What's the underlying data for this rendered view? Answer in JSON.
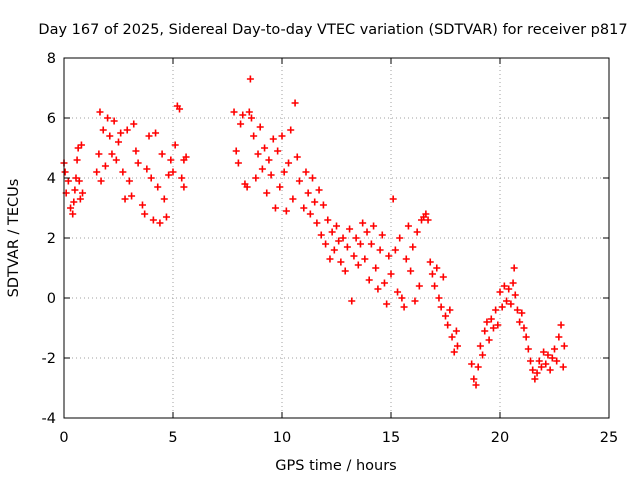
{
  "chart_data": {
    "type": "scatter",
    "title": "Day 167 of 2025, Sidereal Day-to-day VTEC variation (SDTVAR) for receiver p817",
    "xlabel": "GPS time / hours",
    "ylabel": "SDTVAR / TECUs",
    "xlim": [
      0,
      25
    ],
    "ylim": [
      -4,
      8
    ],
    "xticks": [
      0,
      5,
      10,
      15,
      20,
      25
    ],
    "yticks": [
      -4,
      -2,
      0,
      2,
      4,
      6,
      8
    ],
    "grid": true,
    "marker": "+",
    "series": [
      {
        "name": "SDTVAR",
        "color": "#ff0000",
        "points": [
          [
            0.0,
            4.5
          ],
          [
            0.05,
            4.2
          ],
          [
            0.1,
            3.5
          ],
          [
            0.2,
            3.9
          ],
          [
            0.3,
            3.0
          ],
          [
            0.4,
            2.8
          ],
          [
            0.45,
            3.2
          ],
          [
            0.5,
            3.6
          ],
          [
            0.55,
            4.0
          ],
          [
            0.6,
            4.6
          ],
          [
            0.65,
            5.0
          ],
          [
            0.7,
            3.9
          ],
          [
            0.75,
            3.3
          ],
          [
            0.8,
            5.1
          ],
          [
            0.85,
            3.5
          ],
          [
            1.5,
            4.2
          ],
          [
            1.6,
            4.8
          ],
          [
            1.65,
            6.2
          ],
          [
            1.7,
            3.9
          ],
          [
            1.8,
            5.6
          ],
          [
            1.9,
            4.4
          ],
          [
            2.0,
            6.0
          ],
          [
            2.1,
            5.4
          ],
          [
            2.2,
            4.8
          ],
          [
            2.3,
            5.9
          ],
          [
            2.4,
            4.6
          ],
          [
            2.5,
            5.2
          ],
          [
            2.6,
            5.5
          ],
          [
            2.7,
            4.2
          ],
          [
            2.8,
            3.3
          ],
          [
            2.9,
            5.6
          ],
          [
            3.0,
            3.9
          ],
          [
            3.1,
            3.4
          ],
          [
            3.2,
            5.8
          ],
          [
            3.3,
            4.9
          ],
          [
            3.4,
            4.5
          ],
          [
            3.6,
            3.1
          ],
          [
            3.7,
            2.8
          ],
          [
            3.8,
            4.3
          ],
          [
            3.9,
            5.4
          ],
          [
            4.0,
            4.0
          ],
          [
            4.1,
            2.6
          ],
          [
            4.2,
            5.5
          ],
          [
            4.3,
            3.7
          ],
          [
            4.4,
            2.5
          ],
          [
            4.5,
            4.8
          ],
          [
            4.6,
            3.3
          ],
          [
            4.7,
            2.7
          ],
          [
            4.8,
            4.1
          ],
          [
            4.9,
            4.6
          ],
          [
            5.0,
            4.2
          ],
          [
            5.1,
            5.1
          ],
          [
            5.2,
            6.4
          ],
          [
            5.3,
            6.3
          ],
          [
            5.4,
            4.0
          ],
          [
            5.5,
            4.6
          ],
          [
            5.6,
            4.7
          ],
          [
            5.5,
            3.7
          ],
          [
            7.8,
            6.2
          ],
          [
            7.9,
            4.9
          ],
          [
            8.0,
            4.5
          ],
          [
            8.1,
            5.8
          ],
          [
            8.2,
            6.1
          ],
          [
            8.3,
            3.8
          ],
          [
            8.4,
            3.7
          ],
          [
            8.5,
            6.2
          ],
          [
            8.55,
            7.3
          ],
          [
            8.6,
            6.0
          ],
          [
            8.7,
            5.4
          ],
          [
            8.8,
            4.0
          ],
          [
            8.9,
            4.8
          ],
          [
            9.0,
            5.7
          ],
          [
            9.1,
            4.3
          ],
          [
            9.2,
            5.0
          ],
          [
            9.3,
            3.5
          ],
          [
            9.4,
            4.6
          ],
          [
            9.5,
            4.1
          ],
          [
            9.6,
            5.3
          ],
          [
            9.7,
            3.0
          ],
          [
            9.8,
            4.9
          ],
          [
            9.9,
            3.7
          ],
          [
            10.0,
            5.4
          ],
          [
            10.1,
            4.2
          ],
          [
            10.2,
            2.9
          ],
          [
            10.3,
            4.5
          ],
          [
            10.4,
            5.6
          ],
          [
            10.5,
            3.3
          ],
          [
            10.6,
            6.5
          ],
          [
            10.7,
            4.7
          ],
          [
            10.8,
            3.9
          ],
          [
            11.0,
            3.0
          ],
          [
            11.1,
            4.2
          ],
          [
            11.2,
            3.5
          ],
          [
            11.3,
            2.8
          ],
          [
            11.4,
            4.0
          ],
          [
            11.5,
            3.2
          ],
          [
            11.6,
            2.5
          ],
          [
            11.7,
            3.6
          ],
          [
            11.8,
            2.1
          ],
          [
            11.9,
            3.1
          ],
          [
            12.0,
            1.8
          ],
          [
            12.1,
            2.6
          ],
          [
            12.2,
            1.3
          ],
          [
            12.3,
            2.2
          ],
          [
            12.4,
            1.6
          ],
          [
            12.5,
            2.4
          ],
          [
            12.6,
            1.9
          ],
          [
            12.7,
            1.2
          ],
          [
            12.8,
            2.0
          ],
          [
            12.9,
            0.9
          ],
          [
            13.0,
            1.7
          ],
          [
            13.1,
            2.3
          ],
          [
            13.2,
            -0.1
          ],
          [
            13.3,
            1.4
          ],
          [
            13.4,
            2.0
          ],
          [
            13.5,
            1.1
          ],
          [
            13.6,
            1.8
          ],
          [
            13.7,
            2.5
          ],
          [
            13.8,
            1.3
          ],
          [
            13.9,
            2.2
          ],
          [
            14.0,
            0.6
          ],
          [
            14.1,
            1.8
          ],
          [
            14.2,
            2.4
          ],
          [
            14.3,
            1.0
          ],
          [
            14.4,
            0.3
          ],
          [
            14.5,
            1.6
          ],
          [
            14.6,
            2.1
          ],
          [
            14.7,
            0.5
          ],
          [
            14.8,
            -0.2
          ],
          [
            14.9,
            1.4
          ],
          [
            15.0,
            0.8
          ],
          [
            15.1,
            3.3
          ],
          [
            15.2,
            1.6
          ],
          [
            15.3,
            0.2
          ],
          [
            15.4,
            2.0
          ],
          [
            15.5,
            0.0
          ],
          [
            15.6,
            -0.3
          ],
          [
            15.7,
            1.3
          ],
          [
            15.8,
            2.4
          ],
          [
            15.9,
            0.9
          ],
          [
            16.0,
            1.7
          ],
          [
            16.1,
            -0.1
          ],
          [
            16.2,
            2.2
          ],
          [
            16.3,
            0.4
          ],
          [
            16.4,
            2.6
          ],
          [
            16.5,
            2.7
          ],
          [
            16.6,
            2.8
          ],
          [
            16.7,
            2.6
          ],
          [
            16.8,
            1.2
          ],
          [
            16.9,
            0.8
          ],
          [
            17.0,
            0.4
          ],
          [
            17.1,
            1.0
          ],
          [
            17.2,
            0.0
          ],
          [
            17.3,
            -0.3
          ],
          [
            17.4,
            0.7
          ],
          [
            17.5,
            -0.6
          ],
          [
            17.6,
            -0.9
          ],
          [
            17.7,
            -0.4
          ],
          [
            17.8,
            -1.3
          ],
          [
            17.9,
            -1.8
          ],
          [
            18.0,
            -1.1
          ],
          [
            18.05,
            -1.6
          ],
          [
            18.7,
            -2.2
          ],
          [
            18.8,
            -2.7
          ],
          [
            18.9,
            -2.9
          ],
          [
            19.0,
            -2.3
          ],
          [
            19.1,
            -1.6
          ],
          [
            19.2,
            -1.9
          ],
          [
            19.3,
            -1.1
          ],
          [
            19.4,
            -0.8
          ],
          [
            19.5,
            -1.4
          ],
          [
            19.6,
            -0.7
          ],
          [
            19.7,
            -1.0
          ],
          [
            19.8,
            -0.4
          ],
          [
            19.9,
            -0.9
          ],
          [
            20.0,
            0.2
          ],
          [
            20.1,
            -0.3
          ],
          [
            20.2,
            0.4
          ],
          [
            20.3,
            -0.1
          ],
          [
            20.4,
            0.3
          ],
          [
            20.5,
            -0.2
          ],
          [
            20.6,
            0.5
          ],
          [
            20.65,
            1.0
          ],
          [
            20.7,
            0.1
          ],
          [
            20.8,
            -0.4
          ],
          [
            20.9,
            -0.8
          ],
          [
            21.0,
            -0.5
          ],
          [
            21.1,
            -1.0
          ],
          [
            21.2,
            -1.3
          ],
          [
            21.3,
            -1.7
          ],
          [
            21.4,
            -2.1
          ],
          [
            21.5,
            -2.4
          ],
          [
            21.6,
            -2.7
          ],
          [
            21.7,
            -2.5
          ],
          [
            21.8,
            -2.1
          ],
          [
            21.9,
            -2.3
          ],
          [
            22.0,
            -1.8
          ],
          [
            22.1,
            -2.2
          ],
          [
            22.2,
            -1.9
          ],
          [
            22.3,
            -2.4
          ],
          [
            22.4,
            -2.0
          ],
          [
            22.5,
            -1.7
          ],
          [
            22.6,
            -2.1
          ],
          [
            22.7,
            -1.3
          ],
          [
            22.8,
            -0.9
          ],
          [
            22.9,
            -2.3
          ],
          [
            22.95,
            -1.6
          ]
        ]
      }
    ]
  }
}
